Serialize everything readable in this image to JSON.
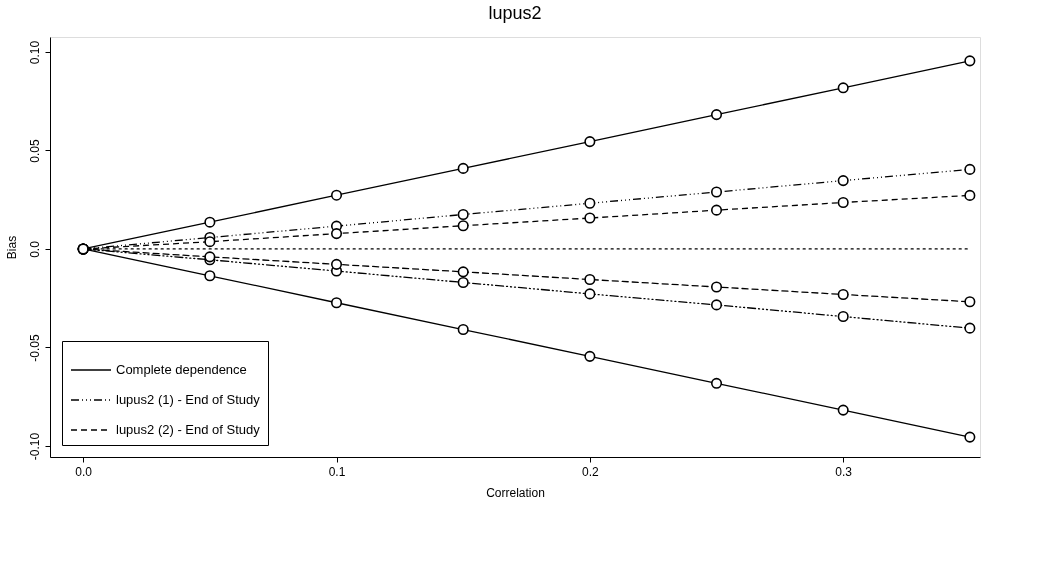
{
  "chart_data": {
    "type": "line",
    "title": "lupus2",
    "xlabel": "Correlation",
    "ylabel": "Bias",
    "x": [
      0,
      0.05,
      0.1,
      0.15,
      0.2,
      0.25,
      0.3,
      0.35
    ],
    "series": [
      {
        "name": "Complete dependence",
        "color": "#000000",
        "line_style": "solid",
        "values": [
          0,
          0.0136,
          0.0273,
          0.0409,
          0.0545,
          0.0682,
          0.0818,
          0.0955
        ]
      },
      {
        "color": "#000000",
        "line_style": "solid",
        "values": [
          0,
          -0.0136,
          -0.0273,
          -0.0409,
          -0.0545,
          -0.0682,
          -0.0818,
          -0.0955
        ]
      },
      {
        "name": "lupus2 (1) - End of Study",
        "color": "#000000",
        "line_style": "dashdot",
        "values": [
          0,
          0.0058,
          0.0116,
          0.0175,
          0.0232,
          0.0289,
          0.0347,
          0.0404
        ]
      },
      {
        "color": "#000000",
        "line_style": "dashdot",
        "values": [
          0,
          -0.0055,
          -0.0112,
          -0.017,
          -0.0228,
          -0.0284,
          -0.0343,
          -0.0402
        ]
      },
      {
        "name": "lupus2 (2) - End of Study",
        "color": "#000000",
        "line_style": "dashed",
        "values": [
          0,
          0.0037,
          0.0078,
          0.0118,
          0.0157,
          0.0197,
          0.0236,
          0.0272
        ]
      },
      {
        "color": "#000000",
        "line_style": "dashed",
        "values": [
          0,
          -0.004,
          -0.0078,
          -0.0116,
          -0.0155,
          -0.0193,
          -0.0231,
          -0.0268
        ]
      },
      {
        "color": "#000000",
        "line_style": "dotted",
        "marker": "none",
        "x": [
          0,
          0.35
        ],
        "values": [
          0,
          0
        ]
      }
    ],
    "marker": "circle",
    "xlim": [
      -0.0131,
      0.354
    ],
    "ylim": [
      -0.1056,
      0.1076
    ],
    "xticks": [
      {
        "value": 0,
        "label": "0.0"
      },
      0.1,
      0.2,
      0.3
    ],
    "yticks": [
      {
        "value": -0.1,
        "label": "-0.10"
      },
      -0.05,
      {
        "value": 0,
        "label": "0.0"
      },
      0.05,
      {
        "value": 0.1,
        "label": "0.10"
      }
    ],
    "grid": false,
    "legend": "bottom left"
  }
}
